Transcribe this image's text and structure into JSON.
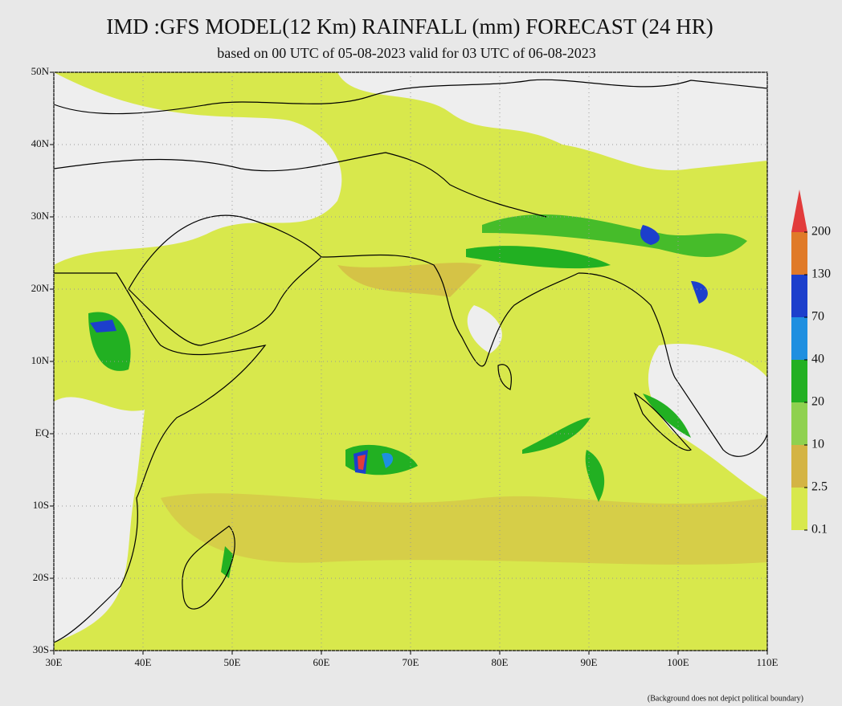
{
  "header": {
    "title": "IMD :GFS MODEL(12 Km) RAINFALL (mm) FORECAST (24 HR)",
    "subtitle": "based on 00 UTC of 05-08-2023 valid for 03 UTC of 06-08-2023"
  },
  "map": {
    "xlim": [
      30,
      110
    ],
    "ylim": [
      -30,
      50
    ],
    "xticks": [
      {
        "value": 30,
        "label": "30E"
      },
      {
        "value": 40,
        "label": "40E"
      },
      {
        "value": 50,
        "label": "50E"
      },
      {
        "value": 60,
        "label": "60E"
      },
      {
        "value": 70,
        "label": "70E"
      },
      {
        "value": 80,
        "label": "80E"
      },
      {
        "value": 90,
        "label": "90E"
      },
      {
        "value": 100,
        "label": "100E"
      },
      {
        "value": 110,
        "label": "110E"
      }
    ],
    "yticks": [
      {
        "value": 50,
        "label": "50N"
      },
      {
        "value": 40,
        "label": "40N"
      },
      {
        "value": 30,
        "label": "30N"
      },
      {
        "value": 20,
        "label": "20N"
      },
      {
        "value": 10,
        "label": "10N"
      },
      {
        "value": 0,
        "label": "EQ"
      },
      {
        "value": -10,
        "label": "10S"
      },
      {
        "value": -20,
        "label": "20S"
      },
      {
        "value": -30,
        "label": "30S"
      }
    ],
    "grid": true
  },
  "legend": {
    "levels": [
      0.1,
      2.5,
      10,
      20,
      40,
      70,
      130,
      200
    ],
    "colors": [
      "#d8e84c",
      "#d4b444",
      "#8fd14f",
      "#22b022",
      "#1e8fe0",
      "#1c3fcc",
      "#e07a28",
      "#e23b3b"
    ]
  },
  "footnote": "(Background does not depict political boundary)"
}
